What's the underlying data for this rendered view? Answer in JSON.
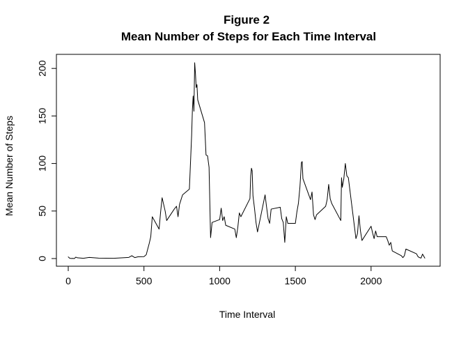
{
  "chart_data": {
    "type": "line",
    "title_lines": [
      "Figure 2",
      "Mean Number of Steps for Each Time Interval"
    ],
    "xlabel": "Time Interval",
    "ylabel": "Mean Number of Steps",
    "xlim": [
      0,
      2355
    ],
    "ylim": [
      0,
      206
    ],
    "xticks": [
      0,
      500,
      1000,
      1500,
      2000
    ],
    "yticks": [
      0,
      50,
      100,
      150,
      200
    ],
    "xtick_labels": [
      "0",
      "500",
      "1000",
      "1500",
      "2000"
    ],
    "ytick_labels": [
      "0",
      "50",
      "100",
      "150",
      "200"
    ],
    "grid": false,
    "line_color": "#000000",
    "series": [
      {
        "x": [
          0,
          10,
          20,
          30,
          40,
          50,
          60,
          100,
          140,
          200,
          300,
          400,
          420,
          440,
          460,
          500,
          515,
          535,
          545,
          555,
          600,
          610,
          620,
          640,
          650,
          700,
          715,
          725,
          735,
          745,
          755,
          800,
          815,
          820,
          825,
          830,
          835,
          840,
          845,
          850,
          855,
          900,
          910,
          920,
          930,
          940,
          950,
          1000,
          1010,
          1020,
          1030,
          1040,
          1100,
          1110,
          1120,
          1130,
          1140,
          1200,
          1205,
          1210,
          1215,
          1220,
          1230,
          1240,
          1250,
          1300,
          1310,
          1320,
          1330,
          1340,
          1400,
          1410,
          1420,
          1430,
          1440,
          1450,
          1500,
          1510,
          1520,
          1530,
          1540,
          1545,
          1550,
          1600,
          1610,
          1620,
          1630,
          1640,
          1700,
          1710,
          1720,
          1730,
          1740,
          1800,
          1805,
          1810,
          1820,
          1830,
          1840,
          1845,
          1850,
          1900,
          1910,
          1920,
          1930,
          1940,
          2000,
          2010,
          2020,
          2030,
          2040,
          2100,
          2110,
          2120,
          2130,
          2140,
          2200,
          2210,
          2220,
          2230,
          2300,
          2310,
          2320,
          2330,
          2340,
          2355
        ],
        "y": [
          1.7,
          0.3,
          0.1,
          0.2,
          0.0,
          1.5,
          0.8,
          0.3,
          1.2,
          0.5,
          0.3,
          1.2,
          3.0,
          1.0,
          1.8,
          2.0,
          4.0,
          16.0,
          23.0,
          44.0,
          31.0,
          49.0,
          64.0,
          50.0,
          40.0,
          52.0,
          55.0,
          44.0,
          57.0,
          62.0,
          67.0,
          73.0,
          130.0,
          157.0,
          171.0,
          155.0,
          206.0,
          195.0,
          180.0,
          183.0,
          167.0,
          143.0,
          109.0,
          108.0,
          96.0,
          22.0,
          38.0,
          41.0,
          53.0,
          40.0,
          44.0,
          35.0,
          31.0,
          22.0,
          33.0,
          48.0,
          44.0,
          63.0,
          87.0,
          95.0,
          92.0,
          66.0,
          53.0,
          38.0,
          28.0,
          67.0,
          54.0,
          42.0,
          37.0,
          52.0,
          54.0,
          42.0,
          38.0,
          17.0,
          44.0,
          37.0,
          37.0,
          49.0,
          58.0,
          75.0,
          101.0,
          102.0,
          84.0,
          62.0,
          70.0,
          46.0,
          41.0,
          46.0,
          55.0,
          62.0,
          78.0,
          63.0,
          58.0,
          40.0,
          85.0,
          75.0,
          84.0,
          100.0,
          87.0,
          86.0,
          85.0,
          21.0,
          26.0,
          45.0,
          29.0,
          19.0,
          34.0,
          27.0,
          21.0,
          29.0,
          23.0,
          23.0,
          19.0,
          14.0,
          17.0,
          8.0,
          3.0,
          1.0,
          3.0,
          10.0,
          5.0,
          2.0,
          1.0,
          0.5,
          4.7,
          0.5
        ]
      }
    ]
  }
}
